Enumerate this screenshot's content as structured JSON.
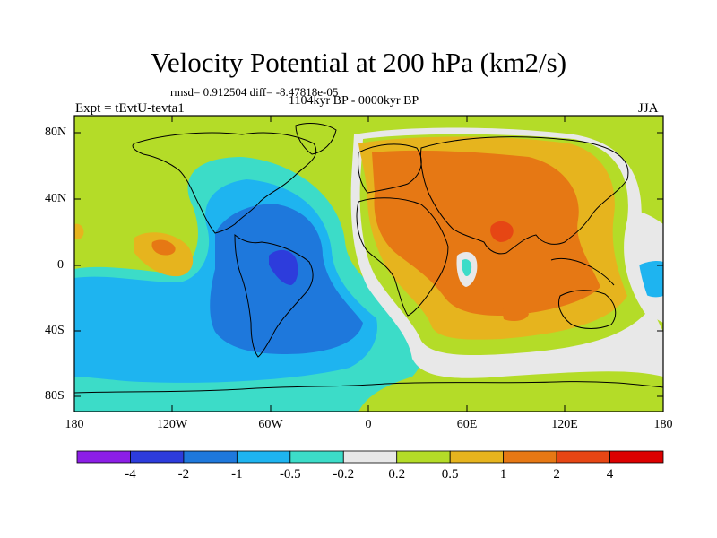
{
  "title": "Velocity Potential at 200 hPa (km2/s)",
  "stats_line": "rmsd= 0.912504 diff= -8.47818e-05",
  "period": "1104kyr BP - 0000kyr BP",
  "experiment": "Expt = tEvtU-tevta1",
  "season": "JJA",
  "lat_labels": [
    "80N",
    "40N",
    "0",
    "40S",
    "80S"
  ],
  "lon_labels": [
    "180",
    "120W",
    "60W",
    "0",
    "60E",
    "120E",
    "180"
  ],
  "colorbar": {
    "labels": [
      "-4",
      "-2",
      "-1",
      "-0.5",
      "-0.2",
      "0.2",
      "0.5",
      "1",
      "2",
      "4"
    ],
    "colors": [
      "#8c1ee6",
      "#2d3cdc",
      "#1e78dc",
      "#1eb4f0",
      "#3cdcc8",
      "#e8e8e8",
      "#b4dc28",
      "#e6b41e",
      "#e67814",
      "#e64614",
      "#dc0000"
    ]
  },
  "colors": {
    "bg_neutral": "#e8e8e8",
    "green": "#b4dc28",
    "teal": "#3cdcc8",
    "lightblue": "#1eb4f0",
    "blue": "#1e78dc",
    "darkblue": "#2d3cdc",
    "yellow": "#e6b41e",
    "orange": "#e67814",
    "red": "#e64614"
  }
}
